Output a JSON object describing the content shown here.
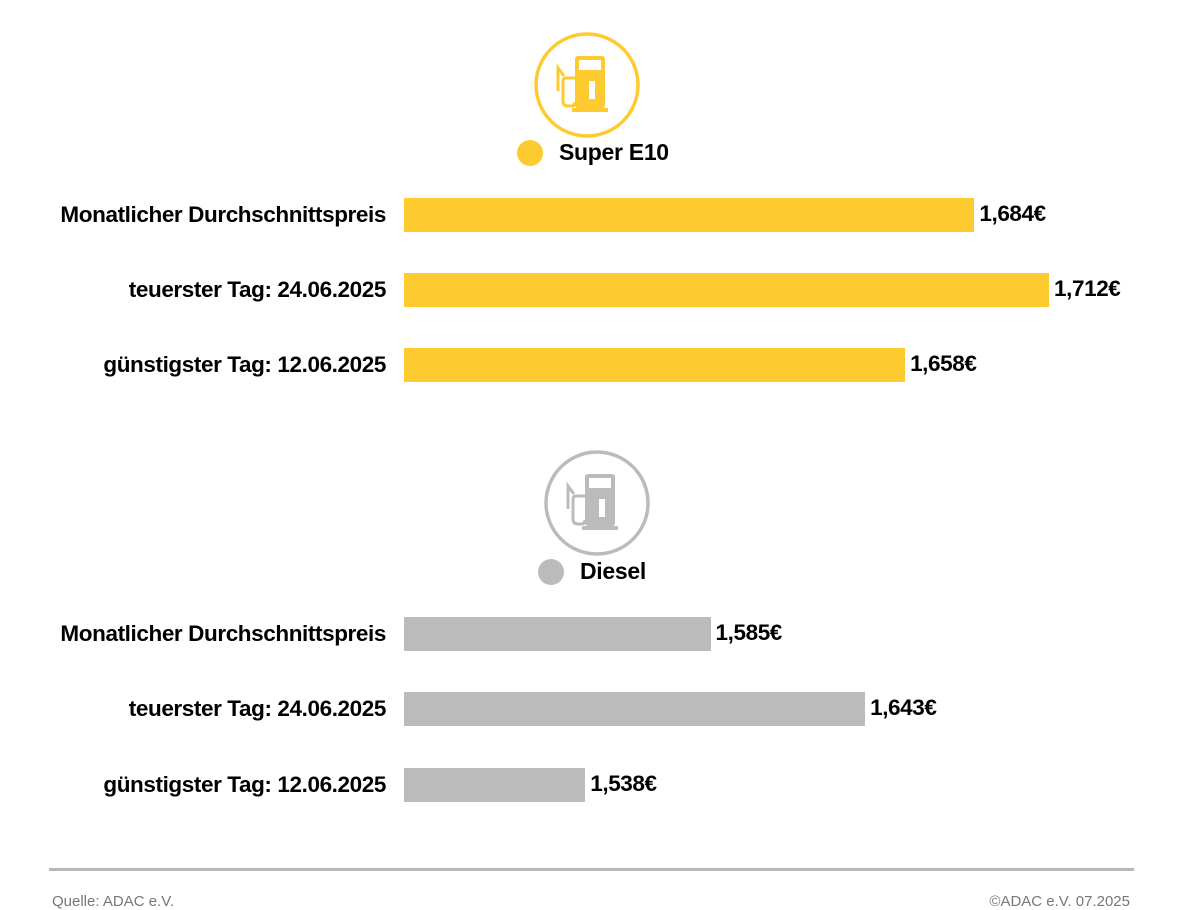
{
  "colors": {
    "super": "#FDCB2F",
    "diesel": "#BBBBBB",
    "label": "#000000",
    "footer": "#777777"
  },
  "chart_data": [
    {
      "type": "bar",
      "orientation": "horizontal",
      "series_name": "Super E10",
      "icon": "fuel-pump-icon",
      "categories": [
        "Monatlicher Durchschnittspreis",
        "teuerster Tag: 24.06.2025",
        "günstigster Tag: 12.06.2025"
      ],
      "values": [
        1.684,
        1.712,
        1.658
      ],
      "value_labels": [
        "1,684€",
        "1,712€",
        "1,658€"
      ],
      "xlim": [
        1.47,
        1.712
      ]
    },
    {
      "type": "bar",
      "orientation": "horizontal",
      "series_name": "Diesel",
      "icon": "fuel-pump-icon",
      "categories": [
        "Monatlicher Durchschnittspreis",
        "teuerster Tag: 24.06.2025",
        "günstigster Tag: 12.06.2025"
      ],
      "values": [
        1.585,
        1.643,
        1.538
      ],
      "value_labels": [
        "1,585€",
        "1,643€",
        "1,538€"
      ],
      "xlim": [
        1.47,
        1.712
      ]
    }
  ],
  "footer": {
    "source": "Quelle: ADAC e.V.",
    "copyright": "©ADAC e.V. 07.2025"
  }
}
